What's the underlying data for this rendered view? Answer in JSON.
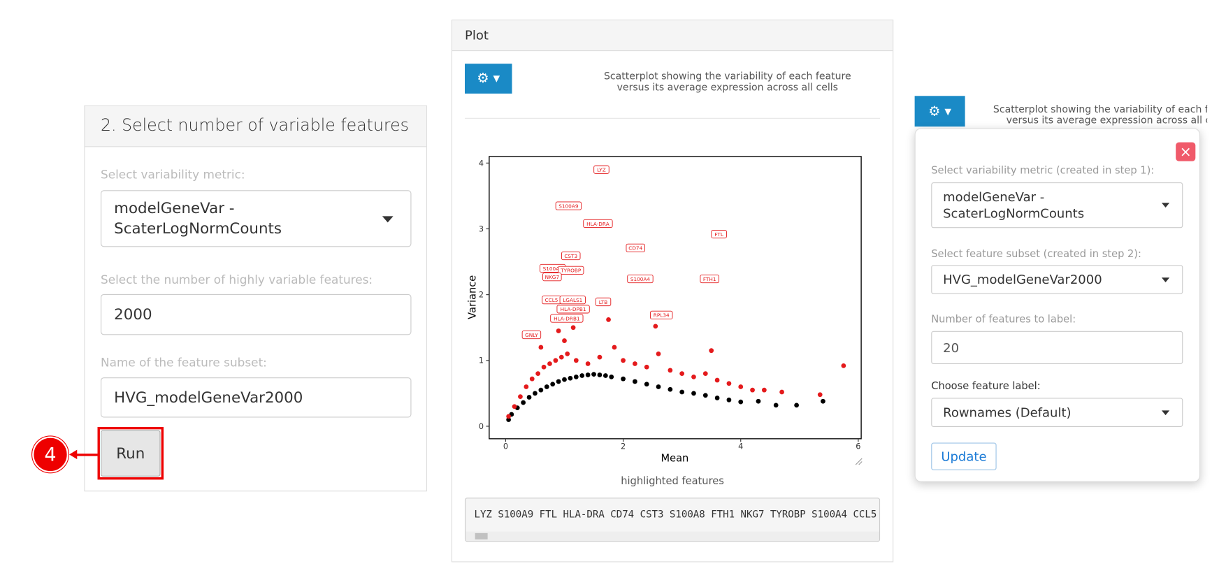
{
  "left_panel": {
    "title": "2. Select number of variable features",
    "metric_label": "Select variability metric:",
    "metric_value": [
      "modelGeneVar -",
      "ScaterLogNormCounts"
    ],
    "hvf_label": "Select the number of highly variable features:",
    "hvf_value": "2000",
    "subset_label": "Name of the feature subset:",
    "subset_value": "HVG_modelGeneVar2000",
    "run_button": "Run",
    "callout": "4"
  },
  "plot_panel": {
    "header": "Plot",
    "description": [
      "Scatterplot showing the variability of each feature",
      "versus its average expression across all cells"
    ],
    "caption": "highlighted features",
    "features_text": "LYZ S100A9 FTL HLA-DRA CD74 CST3 S100A8 FTH1 NKG7 TYROBP S100A4 CCL5"
  },
  "chart_data": {
    "type": "scatter",
    "xlabel": "Mean",
    "ylabel": "Variance",
    "xlim": [
      -0.28,
      6.05
    ],
    "ylim": [
      -0.19,
      4.1
    ],
    "xticks": [
      0,
      2,
      4,
      6
    ],
    "yticks": [
      0,
      1,
      2,
      3,
      4
    ],
    "series": [
      {
        "color": "#000000",
        "x": [
          0.05,
          0.1,
          0.2,
          0.3,
          0.4,
          0.5,
          0.6,
          0.7,
          0.8,
          0.9,
          1.0,
          1.1,
          1.2,
          1.3,
          1.4,
          1.5,
          1.6,
          1.7,
          1.8,
          2.0,
          2.2,
          2.4,
          2.6,
          2.8,
          3.0,
          3.2,
          3.4,
          3.6,
          3.8,
          4.0,
          4.3,
          4.6,
          4.95,
          5.4
        ],
        "values": [
          0.1,
          0.18,
          0.28,
          0.36,
          0.44,
          0.5,
          0.55,
          0.6,
          0.64,
          0.68,
          0.71,
          0.73,
          0.75,
          0.77,
          0.78,
          0.79,
          0.78,
          0.77,
          0.75,
          0.72,
          0.68,
          0.64,
          0.6,
          0.56,
          0.52,
          0.5,
          0.47,
          0.43,
          0.4,
          0.37,
          0.38,
          0.32,
          0.32,
          0.38
        ]
      },
      {
        "color": "#e41a1c",
        "x": [
          0.05,
          0.15,
          0.25,
          0.35,
          0.45,
          0.55,
          0.65,
          0.75,
          0.85,
          0.95,
          1.05,
          1.2,
          1.4,
          1.6,
          1.75,
          1.85,
          2.0,
          2.2,
          2.4,
          2.6,
          2.8,
          3.0,
          3.2,
          3.4,
          3.5,
          3.6,
          3.8,
          4.0,
          4.2,
          4.4,
          4.7,
          5.35,
          5.75,
          0.9,
          1.15,
          0.6,
          2.55,
          1.0
        ],
        "values": [
          0.15,
          0.3,
          0.45,
          0.6,
          0.72,
          0.8,
          0.9,
          0.95,
          1.0,
          1.05,
          1.1,
          1.0,
          0.95,
          1.05,
          1.62,
          1.2,
          1.0,
          0.95,
          0.9,
          1.1,
          0.85,
          0.8,
          0.75,
          0.8,
          1.15,
          0.7,
          0.65,
          0.6,
          0.55,
          0.55,
          0.52,
          0.48,
          0.92,
          1.45,
          1.5,
          1.2,
          1.52,
          1.3
        ]
      }
    ],
    "labeled_points": {
      "color": "#e41a1c",
      "labels": [
        "LYZ",
        "S100A9",
        "HLA-DRA",
        "FTL",
        "CD74",
        "CST3",
        "S100A8",
        "TYROBP",
        "NKG7",
        "S100A4",
        "FTH1",
        "CCL5",
        "LGALS1",
        "LTB",
        "HLA-DPB1",
        "HLA-DRB1",
        "RPL34",
        "GNLY"
      ],
      "x": [
        1.63,
        1.07,
        1.57,
        3.63,
        2.21,
        1.11,
        0.8,
        1.11,
        0.79,
        2.29,
        3.47,
        0.78,
        1.14,
        1.66,
        1.15,
        1.04,
        2.65,
        0.44
      ],
      "values": [
        3.9,
        3.35,
        3.08,
        2.92,
        2.71,
        2.59,
        2.4,
        2.37,
        2.27,
        2.24,
        2.24,
        1.92,
        1.92,
        1.89,
        1.78,
        1.64,
        1.69,
        1.39
      ]
    }
  },
  "settings_popup": {
    "side_description": [
      "Scatterplot showing the variability of each feature",
      "versus its average expression across all cells"
    ],
    "close": "×",
    "metric_label": "Select variability metric (created in step 1):",
    "metric_value": [
      "modelGeneVar -",
      "ScaterLogNormCounts"
    ],
    "subset_label": "Select feature subset (created in step 2):",
    "subset_value": "HVG_modelGeneVar2000",
    "nlabel_label": "Number of features to label:",
    "nlabel_value": "20",
    "feature_label_label": "Choose feature label:",
    "feature_label_value": "Rownames (Default)",
    "update_button": "Update"
  }
}
